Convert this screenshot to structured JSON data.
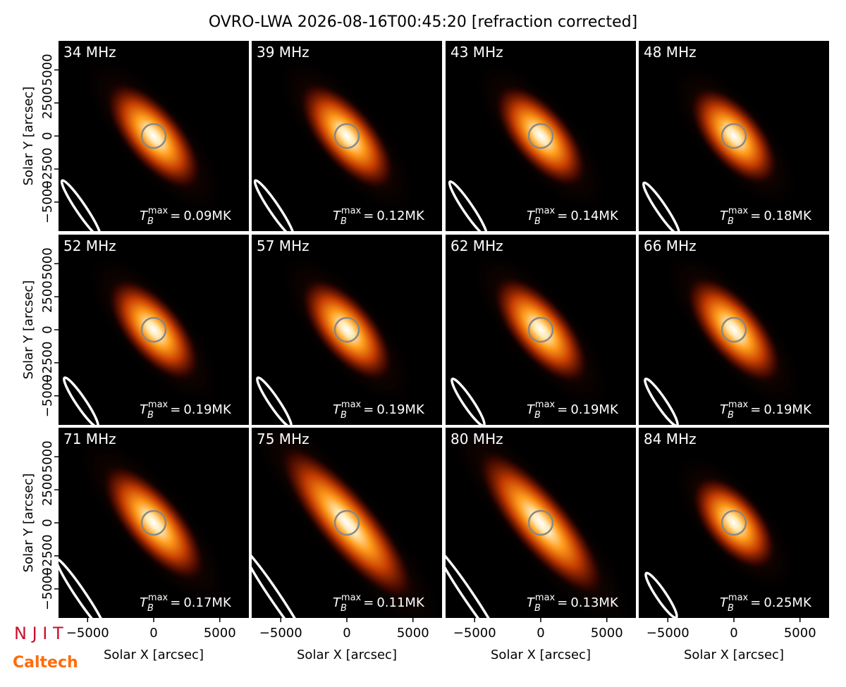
{
  "chart_data": {
    "type": "image-grid",
    "title": "OVRO-LWA 2026-08-16T00:45:20 [refraction corrected]",
    "xlabel": "Solar X [arcsec]",
    "ylabel": "Solar Y [arcsec]",
    "xlim": [
      -7200,
      7200
    ],
    "ylim": [
      -7200,
      7200
    ],
    "xticks": [
      {
        "value": -5000,
        "label": "−5000"
      },
      0,
      5000
    ],
    "yticks": [
      {
        "value": -5000,
        "label": "−5000"
      },
      {
        "value": -2500,
        "label": "−2500"
      },
      0,
      2500,
      5000
    ],
    "tb_symbol": "T",
    "tb_sub": "B",
    "tb_sup": "max",
    "tb_eq": "=",
    "panels": [
      {
        "title": "34 MHz",
        "tb_max_label": "0.09MK"
      },
      {
        "title": "39 MHz",
        "tb_max_label": "0.12MK"
      },
      {
        "title": "43 MHz",
        "tb_max_label": "0.14MK"
      },
      {
        "title": "48 MHz",
        "tb_max_label": "0.18MK"
      },
      {
        "title": "52 MHz",
        "tb_max_label": "0.19MK"
      },
      {
        "title": "57 MHz",
        "tb_max_label": "0.19MK"
      },
      {
        "title": "62 MHz",
        "tb_max_label": "0.19MK"
      },
      {
        "title": "66 MHz",
        "tb_max_label": "0.19MK"
      },
      {
        "title": "71 MHz",
        "tb_max_label": "0.17MK"
      },
      {
        "title": "75 MHz",
        "tb_max_label": "0.11MK"
      },
      {
        "title": "80 MHz",
        "tb_max_label": "0.13MK"
      },
      {
        "title": "84 MHz",
        "tb_max_label": "0.25MK"
      }
    ]
  },
  "logos": [
    "N J I T",
    "Caltech"
  ]
}
